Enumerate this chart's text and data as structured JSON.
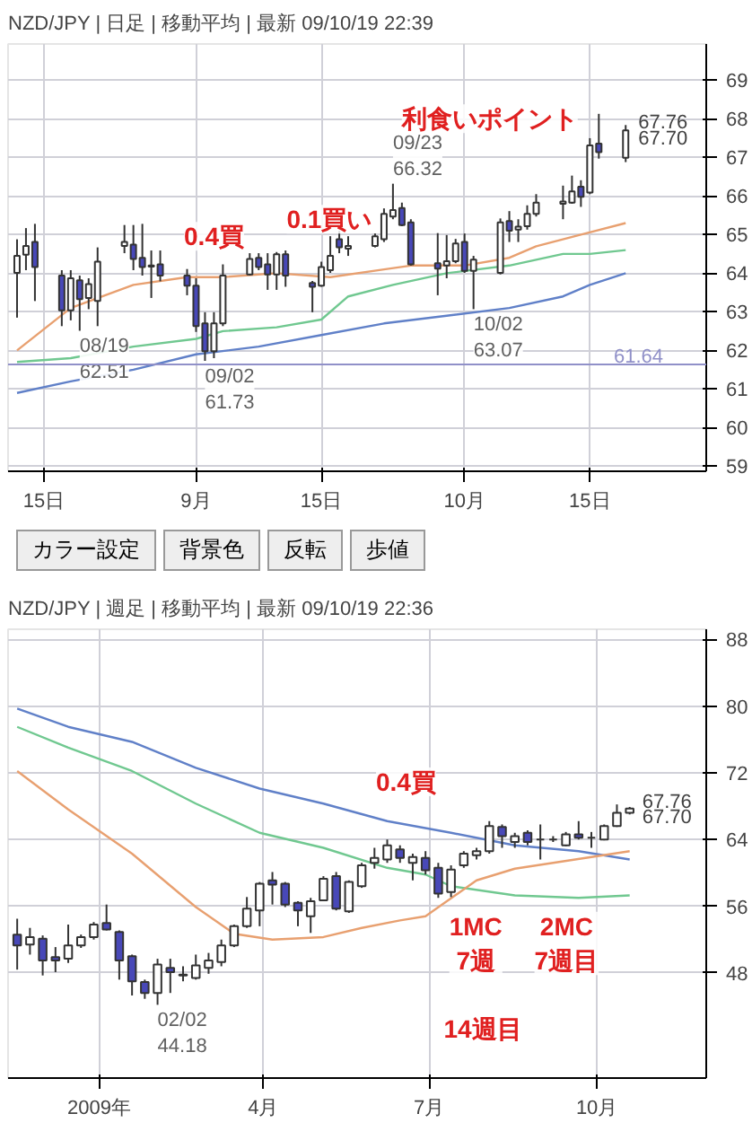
{
  "chart_data": [
    {
      "type": "candlestick",
      "title": "NZD/JPY | 日足 | 移動平均 | 最新 09/10/19 22:39",
      "x": [
        "2009-08-12",
        "2009-08-13",
        "2009-08-14",
        "2009-08-17",
        "2009-08-18",
        "2009-08-19",
        "2009-08-20",
        "2009-08-21",
        "2009-08-24",
        "2009-08-25",
        "2009-08-26",
        "2009-08-27",
        "2009-08-28",
        "2009-08-31",
        "2009-09-01",
        "2009-09-02",
        "2009-09-03",
        "2009-09-04",
        "2009-09-07",
        "2009-09-08",
        "2009-09-09",
        "2009-09-10",
        "2009-09-11",
        "2009-09-14",
        "2009-09-15",
        "2009-09-16",
        "2009-09-17",
        "2009-09-18",
        "2009-09-21",
        "2009-09-22",
        "2009-09-23",
        "2009-09-24",
        "2009-09-25",
        "2009-09-28",
        "2009-09-29",
        "2009-09-30",
        "2009-10-01",
        "2009-10-02",
        "2009-10-05",
        "2009-10-06",
        "2009-10-07",
        "2009-10-08",
        "2009-10-09",
        "2009-10-12",
        "2009-10-13",
        "2009-10-14",
        "2009-10-15",
        "2009-10-16",
        "2009-10-19"
      ],
      "ohlc": [
        [
          64.01,
          64.88,
          62.85,
          64.45
        ],
        [
          64.48,
          65.17,
          64.08,
          64.71
        ],
        [
          64.81,
          65.28,
          63.28,
          64.16
        ],
        [
          63.94,
          64.08,
          62.63,
          63.04
        ],
        [
          63.04,
          64.08,
          62.78,
          63.87
        ],
        [
          63.82,
          63.94,
          62.51,
          63.33
        ],
        [
          63.36,
          63.87,
          63.07,
          63.72
        ],
        [
          63.28,
          64.67,
          62.63,
          64.3
        ],
        [
          64.71,
          65.25,
          64.52,
          64.81
        ],
        [
          64.74,
          65.25,
          64.08,
          64.37
        ],
        [
          64.4,
          65.28,
          63.94,
          64.16
        ],
        [
          64.2,
          64.59,
          63.36,
          64.17
        ],
        [
          64.23,
          64.59,
          63.79,
          63.94
        ],
        [
          63.94,
          64.11,
          63.43,
          63.68
        ],
        [
          63.68,
          63.87,
          62.48,
          62.63
        ],
        [
          62.7,
          62.99,
          61.73,
          61.98
        ],
        [
          61.98,
          62.99,
          61.8,
          62.7
        ],
        [
          62.7,
          64.23,
          62.63,
          63.94
        ],
        [
          63.97,
          64.52,
          63.94,
          64.37
        ],
        [
          64.4,
          64.52,
          64.08,
          64.16
        ],
        [
          64.23,
          64.52,
          63.57,
          63.97
        ],
        [
          63.97,
          64.55,
          63.57,
          64.49
        ],
        [
          64.49,
          64.59,
          63.65,
          63.94
        ],
        [
          63.75,
          63.8,
          62.99,
          63.65
        ],
        [
          63.68,
          64.3,
          63.65,
          64.16
        ],
        [
          64.08,
          64.96,
          64.01,
          64.45
        ],
        [
          64.88,
          65.1,
          64.52,
          64.67
        ],
        [
          64.64,
          64.96,
          64.45,
          64.71
        ],
        [
          64.71,
          65.03,
          64.67,
          64.96
        ],
        [
          64.88,
          65.68,
          64.81,
          65.54
        ],
        [
          65.47,
          66.32,
          65.4,
          65.64
        ],
        [
          65.69,
          65.83,
          65.22,
          65.25
        ],
        [
          65.32,
          65.4,
          64.2,
          64.23
        ],
        [
          64.26,
          65.04,
          63.43,
          64.12
        ],
        [
          64.2,
          64.99,
          63.87,
          64.31
        ],
        [
          64.31,
          64.89,
          64.26,
          64.77
        ],
        [
          64.81,
          65.03,
          64.01,
          64.06
        ],
        [
          64.06,
          64.45,
          63.07,
          64.35
        ],
        [
          64.01,
          65.42,
          63.97,
          65.32
        ],
        [
          65.35,
          65.61,
          64.81,
          65.1
        ],
        [
          65.13,
          65.4,
          64.81,
          65.21
        ],
        [
          65.22,
          65.76,
          65.13,
          65.54
        ],
        [
          65.54,
          66.05,
          65.47,
          65.83
        ],
        [
          65.8,
          66.27,
          65.4,
          65.86
        ],
        [
          65.83,
          66.53,
          65.8,
          66.12
        ],
        [
          66.24,
          66.41,
          65.72,
          65.98
        ],
        [
          66.09,
          67.5,
          66.05,
          67.31
        ],
        [
          67.36,
          68.13,
          66.97,
          67.14
        ],
        [
          66.99,
          67.84,
          66.88,
          67.7
        ]
      ],
      "series": [
        {
          "type": "line",
          "color": "#e8a070",
          "x": [
            "2009-08-12",
            "2009-08-18",
            "2009-08-25",
            "2009-08-31",
            "2009-09-04",
            "2009-09-10",
            "2009-09-16",
            "2009-09-22",
            "2009-09-25",
            "2009-10-01",
            "2009-10-06",
            "2009-10-09",
            "2009-10-14",
            "2009-10-19"
          ],
          "values": [
            62.0,
            63.1,
            63.7,
            63.9,
            63.9,
            64.0,
            63.9,
            64.1,
            64.2,
            64.2,
            64.4,
            64.7,
            65.0,
            65.3
          ]
        },
        {
          "type": "line",
          "color": "#70c890",
          "x": [
            "2009-08-12",
            "2009-08-18",
            "2009-08-25",
            "2009-09-01",
            "2009-09-04",
            "2009-09-10",
            "2009-09-15",
            "2009-09-18",
            "2009-09-23",
            "2009-09-29",
            "2009-10-06",
            "2009-10-12",
            "2009-10-15",
            "2009-10-19"
          ],
          "values": [
            61.7,
            61.8,
            62.1,
            62.3,
            62.5,
            62.6,
            62.8,
            63.4,
            63.7,
            64.0,
            64.2,
            64.5,
            64.5,
            64.6
          ]
        },
        {
          "type": "line",
          "color": "#6080c8",
          "x": [
            "2009-08-12",
            "2009-08-18",
            "2009-08-25",
            "2009-09-01",
            "2009-09-08",
            "2009-09-15",
            "2009-09-22",
            "2009-09-29",
            "2009-10-06",
            "2009-10-12",
            "2009-10-15",
            "2009-10-19"
          ],
          "values": [
            60.9,
            61.2,
            61.5,
            61.9,
            62.1,
            62.4,
            62.7,
            62.9,
            63.1,
            63.4,
            63.7,
            64.0
          ]
        }
      ],
      "ref_lines": [
        {
          "axis": "y",
          "value": 61.64,
          "label": "61.64",
          "color": "#9090c8"
        }
      ],
      "annotations": [
        {
          "text": "08/19\n62.51",
          "x": "2009-08-19",
          "y": 62.51
        },
        {
          "text": "09/02\n61.73",
          "x": "2009-09-02",
          "y": 61.73
        },
        {
          "text": "09/23\n66.32",
          "x": "2009-09-23",
          "y": 66.32
        },
        {
          "text": "10/02\n63.07",
          "x": "2009-10-02",
          "y": 63.07
        },
        {
          "text": "67.76",
          "x": "2009-10-19",
          "y": 67.76
        },
        {
          "text": "67.70",
          "x": "2009-10-19",
          "y": 67.7
        },
        "0.4買",
        "0.1買い",
        "利食いポイント"
      ],
      "xlim": [
        "2009-08-11",
        "2009-10-28"
      ],
      "ylim": [
        58.87,
        69.94
      ],
      "xticks": [
        {
          "value": "2009-08-15",
          "label": "15日"
        },
        {
          "value": "2009-09-01",
          "label": "9月"
        },
        {
          "value": "2009-09-15",
          "label": "15日"
        },
        {
          "value": "2009-10-01",
          "label": "10月"
        },
        {
          "value": "2009-10-15",
          "label": "15日"
        }
      ],
      "yticks": [
        59,
        60,
        61,
        62,
        63,
        64,
        65,
        66,
        67,
        68,
        69
      ],
      "grid": true
    },
    {
      "type": "other",
      "annotations": [
        "カラー設定",
        "背景色",
        "反転",
        "歩値"
      ]
    },
    {
      "type": "candlestick",
      "title": "NZD/JPY | 週足 | 移動平均 | 最新 09/10/19 22:36",
      "x": [
        "2008-11-17",
        "2008-11-24",
        "2008-12-01",
        "2008-12-08",
        "2008-12-15",
        "2008-12-22",
        "2008-12-29",
        "2009-01-05",
        "2009-01-12",
        "2009-01-19",
        "2009-01-26",
        "2009-02-02",
        "2009-02-09",
        "2009-02-16",
        "2009-02-23",
        "2009-03-02",
        "2009-03-09",
        "2009-03-16",
        "2009-03-23",
        "2009-03-30",
        "2009-04-06",
        "2009-04-13",
        "2009-04-20",
        "2009-04-27",
        "2009-05-04",
        "2009-05-11",
        "2009-05-18",
        "2009-05-25",
        "2009-06-01",
        "2009-06-08",
        "2009-06-15",
        "2009-06-22",
        "2009-06-29",
        "2009-07-06",
        "2009-07-13",
        "2009-07-20",
        "2009-07-27",
        "2009-08-03",
        "2009-08-10",
        "2009-08-17",
        "2009-08-24",
        "2009-08-31",
        "2009-09-07",
        "2009-09-14",
        "2009-09-21",
        "2009-09-28",
        "2009-10-05",
        "2009-10-12",
        "2009-10-19"
      ],
      "ohlc": [
        [
          52.6,
          54.5,
          48.4,
          51.3
        ],
        [
          51.4,
          53.4,
          50.2,
          52.3
        ],
        [
          52.1,
          52.5,
          47.7,
          49.5
        ],
        [
          49.9,
          51.1,
          48.1,
          49.5
        ],
        [
          49.7,
          53.8,
          49.2,
          51.3
        ],
        [
          51.3,
          52.6,
          51.0,
          52.3
        ],
        [
          52.3,
          54.1,
          52.0,
          53.8
        ],
        [
          54.0,
          56.2,
          53.1,
          53.2
        ],
        [
          52.9,
          53.1,
          47.2,
          49.5
        ],
        [
          50.0,
          50.2,
          45.3,
          47.0
        ],
        [
          46.9,
          47.2,
          44.9,
          45.6
        ],
        [
          45.6,
          49.7,
          44.18,
          49.0
        ],
        [
          48.6,
          49.7,
          45.6,
          48.1
        ],
        [
          47.8,
          48.8,
          47.0,
          47.7
        ],
        [
          47.4,
          50.2,
          47.2,
          48.9
        ],
        [
          48.6,
          50.4,
          47.9,
          49.5
        ],
        [
          49.3,
          52.0,
          48.8,
          51.3
        ],
        [
          51.3,
          53.8,
          51.1,
          53.6
        ],
        [
          53.6,
          57.1,
          53.4,
          55.7
        ],
        [
          55.5,
          58.9,
          53.6,
          58.7
        ],
        [
          59.1,
          60.1,
          56.2,
          58.6
        ],
        [
          58.7,
          58.9,
          55.9,
          56.2
        ],
        [
          56.4,
          56.6,
          53.6,
          55.5
        ],
        [
          54.8,
          57.0,
          52.8,
          56.6
        ],
        [
          56.7,
          59.6,
          56.6,
          59.3
        ],
        [
          59.6,
          60.1,
          55.5,
          55.7
        ],
        [
          55.4,
          59.1,
          55.2,
          58.9
        ],
        [
          58.4,
          61.2,
          58.2,
          60.9
        ],
        [
          61.2,
          63.0,
          60.5,
          61.8
        ],
        [
          61.6,
          64.0,
          61.2,
          63.3
        ],
        [
          62.8,
          63.3,
          61.2,
          61.8
        ],
        [
          61.2,
          62.3,
          59.1,
          61.9
        ],
        [
          61.8,
          62.6,
          59.8,
          60.3
        ],
        [
          60.6,
          61.2,
          57.0,
          57.5
        ],
        [
          57.7,
          60.9,
          57.1,
          60.4
        ],
        [
          60.9,
          62.6,
          60.6,
          62.3
        ],
        [
          62.1,
          63.0,
          61.6,
          62.6
        ],
        [
          62.6,
          66.2,
          62.3,
          65.6
        ],
        [
          65.5,
          65.8,
          63.0,
          64.4
        ],
        [
          63.7,
          64.8,
          63.0,
          64.4
        ],
        [
          64.8,
          65.1,
          63.3,
          63.7
        ],
        [
          64.0,
          65.8,
          61.6,
          64.0
        ],
        [
          64.0,
          64.4,
          63.7,
          64.0
        ],
        [
          63.3,
          64.9,
          63.2,
          64.6
        ],
        [
          64.6,
          66.2,
          64.0,
          64.2
        ],
        [
          64.2,
          64.9,
          63.0,
          64.2
        ],
        [
          64.0,
          65.8,
          63.9,
          65.6
        ],
        [
          65.6,
          68.2,
          65.5,
          67.2
        ],
        [
          67.2,
          67.9,
          67.0,
          67.7
        ]
      ],
      "series": [
        {
          "type": "line",
          "color": "#6080c8",
          "x": [
            "2008-11-17",
            "2008-12-15",
            "2009-01-19",
            "2009-02-23",
            "2009-03-30",
            "2009-05-04",
            "2009-06-08",
            "2009-07-13",
            "2009-08-17",
            "2009-09-21",
            "2009-10-19"
          ],
          "values": [
            79.7,
            77.5,
            75.7,
            72.6,
            70.1,
            68.3,
            66.2,
            64.8,
            63.3,
            62.6,
            61.6
          ]
        },
        {
          "type": "line",
          "color": "#70c890",
          "x": [
            "2008-11-17",
            "2008-12-15",
            "2009-01-19",
            "2009-02-23",
            "2009-03-30",
            "2009-05-04",
            "2009-06-08",
            "2009-06-29",
            "2009-07-13",
            "2009-08-17",
            "2009-09-21",
            "2009-10-19"
          ],
          "values": [
            77.5,
            75.0,
            72.2,
            68.3,
            64.8,
            63.0,
            60.6,
            59.8,
            58.4,
            57.3,
            57.0,
            57.3
          ]
        },
        {
          "type": "line",
          "color": "#e8a070",
          "x": [
            "2008-11-17",
            "2008-12-15",
            "2009-01-19",
            "2009-02-23",
            "2009-03-16",
            "2009-04-06",
            "2009-05-04",
            "2009-05-25",
            "2009-06-15",
            "2009-06-29",
            "2009-07-27",
            "2009-08-17",
            "2009-09-07",
            "2009-09-28",
            "2009-10-19"
          ],
          "values": [
            72.2,
            67.6,
            62.3,
            55.9,
            52.7,
            52.0,
            52.3,
            53.4,
            54.3,
            54.8,
            59.1,
            60.5,
            61.2,
            61.9,
            62.6
          ]
        }
      ],
      "annotations": [
        {
          "text": "02/02\n44.18",
          "x": "2009-02-02",
          "y": 44.18
        },
        {
          "text": "67.76",
          "x": "2009-10-19",
          "y": 67.76
        },
        {
          "text": "67.70",
          "x": "2009-10-19",
          "y": 67.7
        },
        "0.4買",
        "1MC\n7週",
        "2MC\n7週目",
        "14週目"
      ],
      "xlim": [
        "2008-11-12",
        "2009-11-30"
      ],
      "ylim": [
        35.4,
        89.2
      ],
      "xticks": [
        {
          "value": "2009-01-01",
          "label": "2009年"
        },
        {
          "value": "2009-04-01",
          "label": "4月"
        },
        {
          "value": "2009-07-01",
          "label": "7月"
        },
        {
          "value": "2009-10-01",
          "label": "10月"
        }
      ],
      "yticks": [
        48,
        56,
        64,
        72,
        80,
        88
      ],
      "grid": true
    }
  ]
}
